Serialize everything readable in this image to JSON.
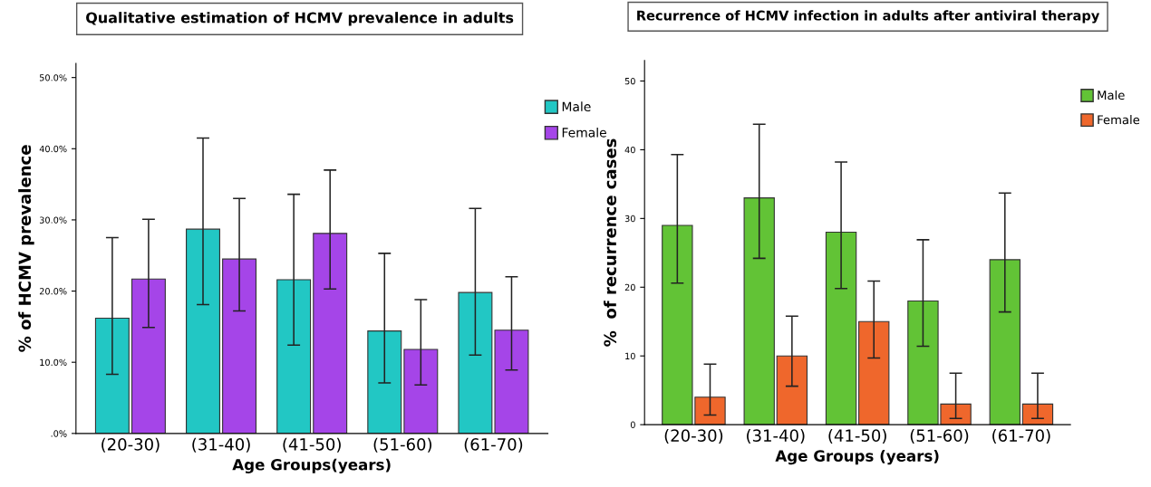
{
  "chart_data": [
    {
      "type": "bar",
      "title": "Qualitative estimation of HCMV prevalence in adults",
      "xlabel": "Age Groups(years)",
      "ylabel": "% of HCMV prevalence",
      "categories": [
        "(20-30)",
        "(31-40)",
        "(41-50)",
        "(51-60)",
        "(61-70)"
      ],
      "series": [
        {
          "name": "Male",
          "color": "#22c7c4",
          "values": [
            16.2,
            28.7,
            21.6,
            14.4,
            19.8
          ],
          "errors": [
            [
              8.3,
              27.5
            ],
            [
              18.1,
              41.5
            ],
            [
              12.4,
              33.6
            ],
            [
              7.1,
              25.3
            ],
            [
              11.0,
              31.6
            ]
          ]
        },
        {
          "name": "Female",
          "color": "#a545e8",
          "values": [
            21.7,
            24.5,
            28.1,
            11.8,
            14.5
          ],
          "errors": [
            [
              14.9,
              30.1
            ],
            [
              17.2,
              33.0
            ],
            [
              20.3,
              37.0
            ],
            [
              6.8,
              18.8
            ],
            [
              8.9,
              22.0
            ]
          ]
        }
      ],
      "ylim": [
        0,
        52
      ],
      "yticks": [
        {
          "value": 0,
          "label": ".0%"
        },
        {
          "value": 10,
          "label": "10.0%"
        },
        {
          "value": 20,
          "label": "20.0%"
        },
        {
          "value": 30,
          "label": "30.0%"
        },
        {
          "value": 40,
          "label": "40.0%"
        },
        {
          "value": 50,
          "label": "50.0%"
        }
      ],
      "legend": "top right",
      "grid": false
    },
    {
      "type": "bar",
      "title": "Recurrence of HCMV infection in adults after antiviral therapy",
      "xlabel": "Age Groups (years)",
      "ylabel": "%  of recurrence cases",
      "categories": [
        "(20-30)",
        "(31-40)",
        "(41-50)",
        "(51-60)",
        "(61-70)"
      ],
      "series": [
        {
          "name": "Male",
          "color": "#62c336",
          "values": [
            29,
            33,
            28,
            18,
            24
          ],
          "errors": [
            [
              20.6,
              39.3
            ],
            [
              24.2,
              43.7
            ],
            [
              19.8,
              38.2
            ],
            [
              11.4,
              26.9
            ],
            [
              16.4,
              33.7
            ]
          ]
        },
        {
          "name": "Female",
          "color": "#ef672c",
          "values": [
            4,
            10,
            15,
            3,
            3
          ],
          "errors": [
            [
              1.4,
              8.8
            ],
            [
              5.6,
              15.8
            ],
            [
              9.7,
              20.9
            ],
            [
              0.9,
              7.5
            ],
            [
              0.9,
              7.5
            ]
          ]
        }
      ],
      "ylim": [
        0,
        53
      ],
      "yticks": [
        0,
        10,
        20,
        30,
        40,
        50
      ],
      "legend": "top right",
      "grid": false
    }
  ]
}
